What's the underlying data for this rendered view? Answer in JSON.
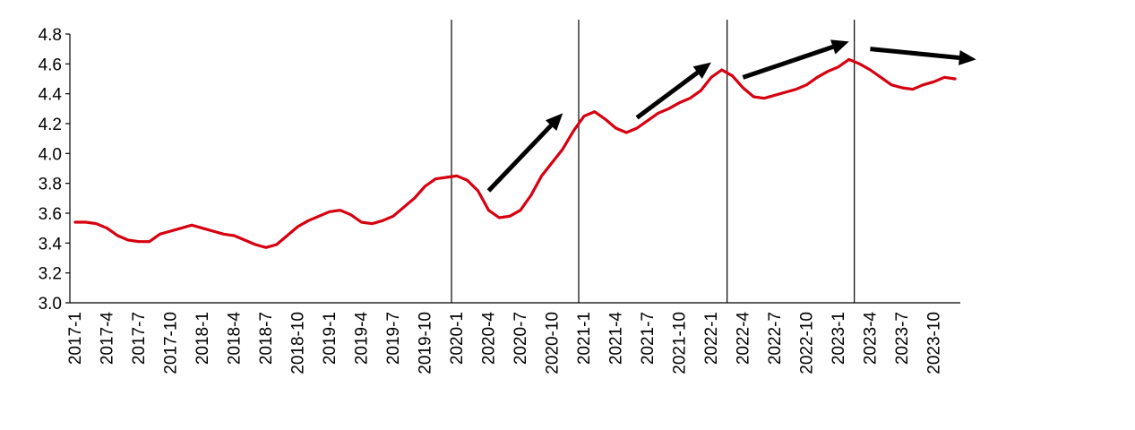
{
  "chart_data": {
    "type": "line",
    "title": "",
    "xlabel": "",
    "ylabel": "",
    "ylim": [
      3.0,
      4.8
    ],
    "y_ticks": [
      "3.0",
      "3.2",
      "3.4",
      "3.6",
      "3.8",
      "4.0",
      "4.2",
      "4.4",
      "4.6",
      "4.8"
    ],
    "grid": false,
    "legend": "none",
    "x_tick_labels": [
      "2017-1",
      "2017-4",
      "2017-7",
      "2017-10",
      "2018-1",
      "2018-4",
      "2018-7",
      "2018-10",
      "2019-1",
      "2019-4",
      "2019-7",
      "2019-10",
      "2020-1",
      "2020-4",
      "2020-7",
      "2020-10",
      "2021-1",
      "2021-4",
      "2021-7",
      "2021-10",
      "2022-1",
      "2022-4",
      "2022-7",
      "2022-10",
      "2023-1",
      "2023-4",
      "2023-7",
      "2023-10"
    ],
    "x": [
      "2017-1",
      "2017-2",
      "2017-3",
      "2017-4",
      "2017-5",
      "2017-6",
      "2017-7",
      "2017-8",
      "2017-9",
      "2017-10",
      "2017-11",
      "2017-12",
      "2018-1",
      "2018-2",
      "2018-3",
      "2018-4",
      "2018-5",
      "2018-6",
      "2018-7",
      "2018-8",
      "2018-9",
      "2018-10",
      "2018-11",
      "2018-12",
      "2019-1",
      "2019-2",
      "2019-3",
      "2019-4",
      "2019-5",
      "2019-6",
      "2019-7",
      "2019-8",
      "2019-9",
      "2019-10",
      "2019-11",
      "2019-12",
      "2020-1",
      "2020-2",
      "2020-3",
      "2020-4",
      "2020-5",
      "2020-6",
      "2020-7",
      "2020-8",
      "2020-9",
      "2020-10",
      "2020-11",
      "2020-12",
      "2021-1",
      "2021-2",
      "2021-3",
      "2021-4",
      "2021-5",
      "2021-6",
      "2021-7",
      "2021-8",
      "2021-9",
      "2021-10",
      "2021-11",
      "2021-12",
      "2022-1",
      "2022-2",
      "2022-3",
      "2022-4",
      "2022-5",
      "2022-6",
      "2022-7",
      "2022-8",
      "2022-9",
      "2022-10",
      "2022-11",
      "2022-12",
      "2023-1",
      "2023-2",
      "2023-3",
      "2023-4",
      "2023-5",
      "2023-6",
      "2023-7",
      "2023-8",
      "2023-9",
      "2023-10",
      "2023-11",
      "2023-12"
    ],
    "series": [
      {
        "values": [
          3.54,
          3.54,
          3.53,
          3.5,
          3.45,
          3.42,
          3.41,
          3.41,
          3.46,
          3.48,
          3.5,
          3.52,
          3.5,
          3.48,
          3.46,
          3.45,
          3.42,
          3.39,
          3.37,
          3.39,
          3.45,
          3.51,
          3.55,
          3.58,
          3.61,
          3.62,
          3.59,
          3.54,
          3.53,
          3.55,
          3.58,
          3.64,
          3.7,
          3.78,
          3.83,
          3.84,
          3.85,
          3.82,
          3.75,
          3.62,
          3.57,
          3.58,
          3.62,
          3.72,
          3.85,
          3.94,
          4.03,
          4.15,
          4.25,
          4.28,
          4.23,
          4.17,
          4.14,
          4.17,
          4.22,
          4.27,
          4.3,
          4.34,
          4.37,
          4.42,
          4.51,
          4.56,
          4.52,
          4.44,
          4.38,
          4.37,
          4.39,
          4.41,
          4.43,
          4.46,
          4.51,
          4.55,
          4.58,
          4.63,
          4.6,
          4.56,
          4.51,
          4.46,
          4.44,
          4.43,
          4.46,
          4.48,
          4.51,
          4.5
        ],
        "color": "#d7000f"
      }
    ],
    "vertical_markers": [
      "2020-1",
      "2021-1",
      "2022-3",
      "2023-3"
    ],
    "trend_arrows": [
      {
        "from": [
          "2020-4",
          3.75
        ],
        "to": [
          "2020-11",
          4.27
        ]
      },
      {
        "from": [
          "2021-6",
          4.24
        ],
        "to": [
          "2022-1",
          4.61
        ]
      },
      {
        "from": [
          "2022-4",
          4.51
        ],
        "to": [
          "2023-2",
          4.75
        ]
      },
      {
        "from": [
          "2023-4",
          4.7
        ],
        "to": [
          "2024-2",
          4.63
        ]
      }
    ],
    "line_color": "#d7000f",
    "arrow_color": "#000000"
  }
}
